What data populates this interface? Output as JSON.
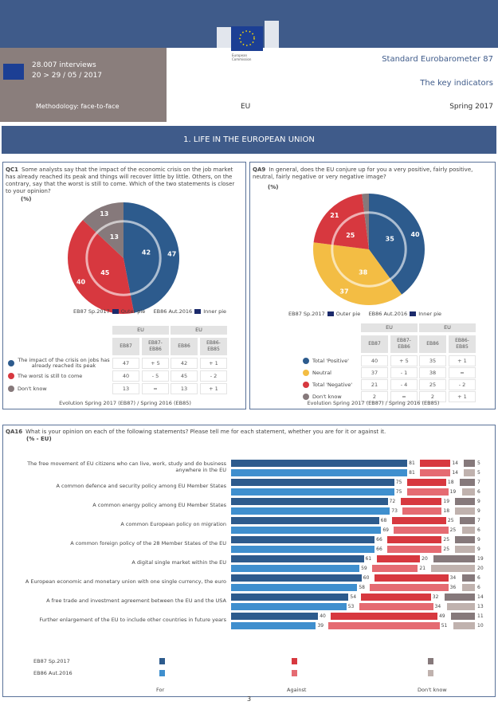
{
  "colors": {
    "header": "#3f5b8a",
    "for_2017": "#2d5b8d",
    "for_2016": "#3f8fce",
    "against_2017": "#d7383f",
    "against_2016": "#e56b72",
    "dk_2017": "#86797b",
    "dk_2016": "#c0b2ae",
    "neutral": "#f3bd44"
  },
  "header": {
    "logo_text": "European Commission",
    "interviews": "28.007 interviews",
    "dates": "20 > 29 / 05 / 2017",
    "methodology": "Methodology: face-to-face",
    "region": "EU",
    "title": "Standard Eurobarometer 87",
    "subtitle": "The key indicators",
    "season": "Spring 2017"
  },
  "section_title": "1. LIFE IN THE EUROPEAN UNION",
  "qc1": {
    "code": "QC1",
    "question": "Some analysts say that the impact of the economic crisis on the job market has already reached its peak and things will recover little by little. Others, on the contrary, say that the worst is still to come. Which of the two statements is closer to your opinion?",
    "unit": "(%)",
    "legend_outer": "EB87 Sp.2017",
    "outer_label": "Outer pie",
    "legend_inner": "EB86 Aut.2016",
    "inner_label": "Inner pie",
    "group_headers": [
      "EU",
      "EU"
    ],
    "col_headers": [
      "EB87",
      "EB87-\nEB86",
      "EB86",
      "EB86-\nEB85"
    ],
    "rows": [
      {
        "label": "The impact of the crisis on jobs has already reached its peak",
        "color": "#2d5b8d",
        "values": [
          "47",
          "+ 5",
          "42",
          "+ 1"
        ]
      },
      {
        "label": "The worst is still to come",
        "color": "#d7383f",
        "values": [
          "40",
          "- 5",
          "45",
          "- 2"
        ]
      },
      {
        "label": "Don't know",
        "color": "#86797b",
        "values": [
          "13",
          "=",
          "13",
          "+ 1"
        ]
      }
    ],
    "footer": "Evolution Spring 2017 (EB87) / Spring 2016 (EB85)",
    "outer_values": [
      47,
      40,
      13
    ],
    "inner_values": [
      42,
      45,
      13
    ]
  },
  "qa9": {
    "code": "QA9",
    "question": "In general, does the EU conjure up for you a very positive, fairly positive, neutral, fairly negative or very negative image?",
    "unit": "(%)",
    "legend_outer": "EB87 Sp.2017",
    "outer_label": "Outer pie",
    "legend_inner": "EB86 Aut.2016",
    "inner_label": "Inner pie",
    "group_headers": [
      "EU",
      "EU"
    ],
    "col_headers": [
      "EB87",
      "EB87-\nEB86",
      "EB86",
      "EB86-\nEB85"
    ],
    "rows": [
      {
        "label": "Total 'Positive'",
        "color": "#2d5b8d",
        "values": [
          "40",
          "+ 5",
          "35",
          "+ 1"
        ]
      },
      {
        "label": "Neutral",
        "color": "#f3bd44",
        "values": [
          "37",
          "- 1",
          "38",
          "="
        ]
      },
      {
        "label": "Total 'Negative'",
        "color": "#d7383f",
        "values": [
          "21",
          "- 4",
          "25",
          "- 2"
        ]
      },
      {
        "label": "Don't know",
        "color": "#86797b",
        "values": [
          "2",
          "=",
          "2",
          "+ 1"
        ]
      }
    ],
    "footer": "Evolution Spring 2017 (EB87) / Spring 2016 (EB85)",
    "outer_values": [
      40,
      37,
      21,
      2
    ],
    "inner_values": [
      35,
      38,
      25,
      2
    ]
  },
  "qa16": {
    "code": "QA16",
    "question": "What is your opinion on each of the following statements? Please tell me for each statement, whether you are for it or against it.",
    "unit": "(% - EU)",
    "series_labels": [
      "EB87 Sp.2017",
      "EB86 Aut.2016"
    ],
    "categories_legend": [
      "For",
      "Against",
      "Don't know"
    ]
  },
  "chart_data": {
    "type": "bar",
    "orientation": "horizontal-stacked",
    "categories": [
      "The free movement of EU citizens who can live, work, study and do business anywhere in the EU",
      "A common defence and security policy among EU Member States",
      "A common energy policy among EU Member States",
      "A common European policy on migration",
      "A common foreign policy of the 28 Member States of the EU",
      "A digital single market within the EU",
      "A European economic and monetary union with one single currency, the euro",
      "A free trade and investment agreement between the EU and the USA",
      "Further enlargement of the EU to include other countries in future years"
    ],
    "series": [
      {
        "name": "EB87 Sp.2017",
        "for": [
          81,
          75,
          72,
          68,
          66,
          61,
          60,
          54,
          40
        ],
        "against": [
          14,
          18,
          19,
          25,
          25,
          20,
          34,
          32,
          49
        ],
        "dont_know": [
          5,
          7,
          9,
          7,
          9,
          19,
          6,
          14,
          11
        ]
      },
      {
        "name": "EB86 Aut.2016",
        "for": [
          81,
          75,
          73,
          69,
          66,
          59,
          58,
          53,
          39
        ],
        "against": [
          14,
          19,
          18,
          25,
          25,
          21,
          36,
          34,
          51
        ],
        "dont_know": [
          5,
          6,
          9,
          6,
          9,
          20,
          6,
          13,
          10
        ]
      }
    ]
  },
  "page_number": "3"
}
